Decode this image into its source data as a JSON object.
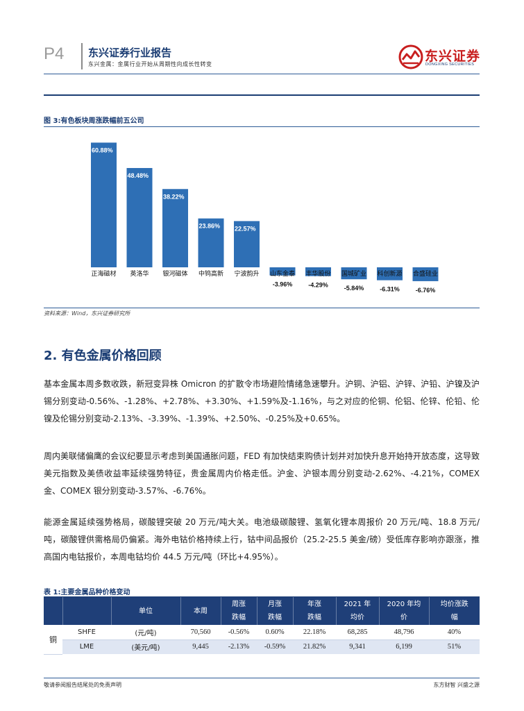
{
  "header": {
    "page_num": "P4",
    "title": "东兴证券行业报告",
    "subtitle": "东兴金属：金属行业开始从周期性向成长性转变",
    "logo_cn": "东兴证券",
    "logo_en": "DONGXING SECURITIES"
  },
  "figure": {
    "title": "图 3:有色板块周涨跌幅前五公司",
    "source": "资料来源：Wind，东兴证券研究所"
  },
  "chart_data": {
    "type": "bar",
    "categories": [
      "正海磁材",
      "英洛华",
      "银河磁体",
      "中钨高新",
      "宁波韵升",
      "山东金泰",
      "丰华股份",
      "国城矿业",
      "科创新源",
      "合盛硅业"
    ],
    "values": [
      60.88,
      48.48,
      38.22,
      23.86,
      22.57,
      -3.96,
      -4.29,
      -5.84,
      -6.31,
      -6.76
    ],
    "labels": [
      "60.88%",
      "48.48%",
      "38.22%",
      "23.86%",
      "22.57%",
      "-3.96%",
      "-4.29%",
      "-5.84%",
      "-6.31%",
      "-6.76%"
    ],
    "ylim": [
      -8,
      70
    ],
    "bar_color": "#2e6fb5",
    "grid": false
  },
  "section": {
    "title": "2. 有色金属价格回顾",
    "paragraphs": [
      "基本金属本周多数收跌，新冠变异株 Omicron 的扩散令市场避险情绪急速攀升。沪铜、沪铝、沪锌、沪铅、沪镍及沪锡分别变动-0.56%、-1.28%、+2.78%、+3.30%、+1.59%及-1.16%，与之对应的伦铜、伦铝、伦锌、伦铅、伦镍及伦锡分别变动-2.13%、-3.39%、-1.39%、+2.50%、-0.25%及+0.65%。",
      "周内美联储偏鹰的会议纪要显示考虑到美国通胀问题，FED 有加快结束购债计划并对加快升息开始持开放态度，这导致美元指数及美债收益率延续强势特征，贵金属周内价格走低。沪金、沪银本周分别变动-2.62%、-4.21%，COMEX 金、COMEX 银分别变动-3.57%、-6.76%。",
      "能源金属延续强势格局，碳酸锂突破 20 万元/吨大关。电池级碳酸锂、氢氧化锂本周报价 20 万元/吨、18.8 万元/吨，碳酸锂供需格局仍偏紧。海外电钴价格持续上行，钴中间品报价（25.2-25.5 美金/磅）受低库存影响亦跟涨，推高国内电钴报价，本周电钴均价 44.5 万元/吨（环比+4.95%）。"
    ]
  },
  "table": {
    "title": "表 1:主要金属品种价格变动",
    "headers": [
      "",
      "",
      "单位",
      "本周",
      "周涨\n跌幅",
      "月涨\n跌幅",
      "年涨\n跌幅",
      "2021 年\n均价",
      "2020 年均\n价",
      "均价涨跌\n幅"
    ],
    "metal": "铜",
    "rows": [
      [
        "SHFE",
        "(元/吨)",
        "70,560",
        "-0.56%",
        "0.60%",
        "22.18%",
        "68,285",
        "48,796",
        "40%"
      ],
      [
        "LME",
        "(美元/吨)",
        "9,445",
        "-2.13%",
        "-0.59%",
        "21.82%",
        "9,341",
        "6,199",
        "51%"
      ]
    ]
  },
  "footer": {
    "left": "敬请参阅报告结尾处的免责声明",
    "right": "东方财智  兴盛之源"
  }
}
